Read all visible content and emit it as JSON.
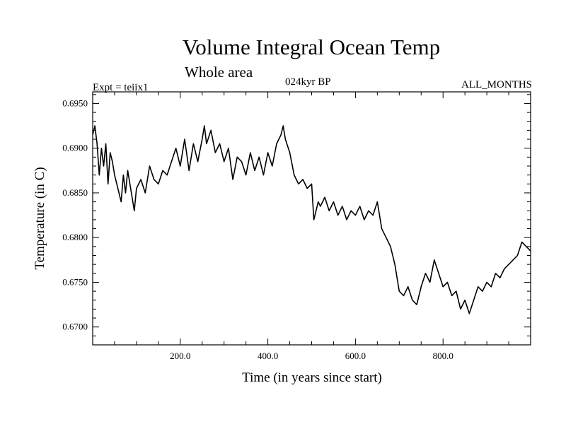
{
  "header": {
    "title": "Volume Integral Ocean Temp",
    "subtitle": "Whole area",
    "experiment": "Expt = teiix1",
    "period": "024kyr BP",
    "months": "ALL_MONTHS"
  },
  "chart_data": {
    "type": "line",
    "title": "Volume Integral Ocean Temp",
    "subtitle": "Whole area",
    "xlabel": "Time (in years since start)",
    "ylabel": "Temperature (in C)",
    "xlim": [
      0,
      1000
    ],
    "ylim": [
      0.668,
      0.6963
    ],
    "xticks": [
      200,
      400,
      600,
      800
    ],
    "xtick_labels": [
      "200.0",
      "400.0",
      "600.0",
      "800.0"
    ],
    "yticks": [
      0.67,
      0.675,
      0.68,
      0.685,
      0.69,
      0.695
    ],
    "ytick_labels": [
      "0.6700",
      "0.6750",
      "0.6800",
      "0.6850",
      "0.6900",
      "0.6950"
    ],
    "grid": false,
    "line_color": "#000000",
    "series": [
      {
        "x": [
          0,
          5,
          10,
          15,
          20,
          25,
          30,
          35,
          40,
          45,
          50,
          55,
          60,
          65,
          70,
          75,
          80,
          85,
          90,
          95,
          100,
          110,
          120,
          130,
          140,
          150,
          160,
          170,
          180,
          190,
          200,
          210,
          220,
          230,
          240,
          250,
          255,
          260,
          270,
          280,
          290,
          300,
          310,
          320,
          330,
          340,
          350,
          360,
          370,
          380,
          390,
          400,
          410,
          420,
          430,
          435,
          440,
          450,
          460,
          470,
          480,
          490,
          500,
          505,
          510,
          515,
          520,
          530,
          540,
          550,
          560,
          570,
          580,
          590,
          600,
          610,
          620,
          630,
          640,
          650,
          660,
          670,
          680,
          690,
          700,
          710,
          720,
          730,
          740,
          750,
          760,
          770,
          780,
          790,
          800,
          810,
          820,
          830,
          840,
          850,
          860,
          870,
          880,
          890,
          900,
          910,
          920,
          930,
          940,
          950,
          960,
          970,
          980,
          990,
          1000
        ],
        "values": [
          0.6915,
          0.6925,
          0.6905,
          0.687,
          0.69,
          0.688,
          0.6905,
          0.686,
          0.6895,
          0.6885,
          0.687,
          0.686,
          0.685,
          0.684,
          0.687,
          0.685,
          0.6875,
          0.686,
          0.6845,
          0.683,
          0.6855,
          0.6865,
          0.685,
          0.688,
          0.6865,
          0.686,
          0.6875,
          0.687,
          0.6885,
          0.69,
          0.688,
          0.691,
          0.6875,
          0.6905,
          0.6885,
          0.691,
          0.6925,
          0.6905,
          0.692,
          0.6895,
          0.6905,
          0.6885,
          0.69,
          0.6865,
          0.689,
          0.6885,
          0.687,
          0.6895,
          0.6875,
          0.689,
          0.687,
          0.6895,
          0.688,
          0.6905,
          0.6915,
          0.6925,
          0.691,
          0.6895,
          0.687,
          0.686,
          0.6865,
          0.6855,
          0.686,
          0.682,
          0.683,
          0.684,
          0.6835,
          0.6845,
          0.683,
          0.684,
          0.6825,
          0.6835,
          0.682,
          0.683,
          0.6825,
          0.6835,
          0.682,
          0.683,
          0.6825,
          0.684,
          0.681,
          0.68,
          0.679,
          0.677,
          0.674,
          0.6735,
          0.6745,
          0.673,
          0.6725,
          0.6745,
          0.676,
          0.675,
          0.6775,
          0.676,
          0.6745,
          0.675,
          0.6735,
          0.674,
          0.672,
          0.673,
          0.6715,
          0.673,
          0.6745,
          0.674,
          0.675,
          0.6745,
          0.676,
          0.6755,
          0.6765,
          0.677,
          0.6775,
          0.678,
          0.6795,
          0.679,
          0.6785
        ]
      }
    ]
  }
}
